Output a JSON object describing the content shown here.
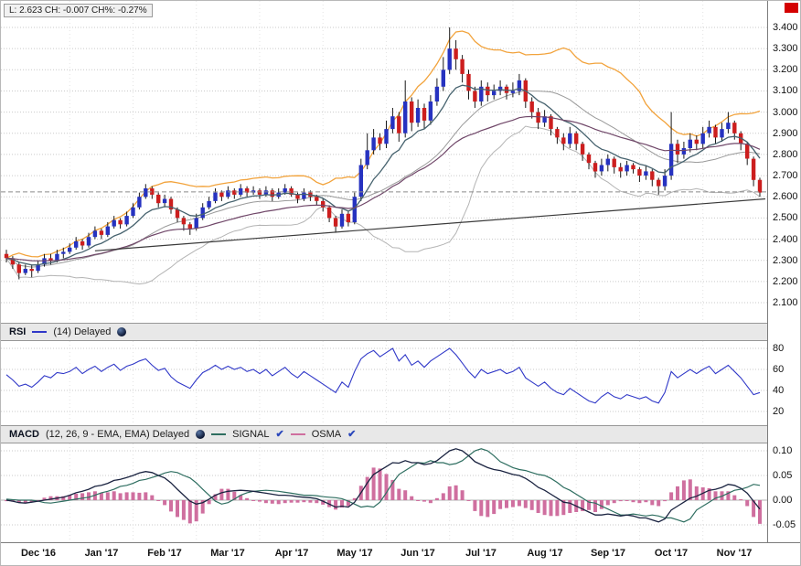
{
  "quote": {
    "label": "L: 2.623 CH: -0.007 CH%: -0.27%"
  },
  "corner_marker": {
    "color": "#d40000"
  },
  "icons": {
    "check": "✔",
    "delayed_globe": "globe-icon"
  },
  "axis": {
    "price_ticks": [
      "3.400",
      "3.300",
      "3.200",
      "3.100",
      "3.000",
      "2.900",
      "2.800",
      "2.700",
      "2.600",
      "2.500",
      "2.400",
      "2.300",
      "2.200",
      "2.100"
    ],
    "rsi_ticks": [
      "80",
      "60",
      "40",
      "20"
    ],
    "macd_ticks": [
      "0.10",
      "0.05",
      "0.00",
      "-0.05"
    ]
  },
  "rsi_panel": {
    "title": "RSI",
    "params": "(14) Delayed",
    "line_color": "#3038c8"
  },
  "macd_panel": {
    "title": "MACD",
    "params": "(12, 26, 9 - EMA, EMA) Delayed",
    "macd_color": "#1a2340",
    "legend": [
      {
        "label": "SIGNAL",
        "color": "#2e6e60"
      },
      {
        "label": "OSMA",
        "color": "#cf6f9f"
      }
    ]
  },
  "price_panel": {
    "current_price_line": 2.623,
    "trendline": {
      "from_index": 14,
      "from_price": 2.345,
      "to_price": 2.59
    },
    "colors": {
      "up": "#2632c0",
      "down": "#cc1e1e",
      "wick": "#1a1a1a",
      "bb_upper": "#f2a33c",
      "bb_mid": "#9a9a9a",
      "bb_lower": "#b4b4b4",
      "ema_fast": "#46626e",
      "ema_slow": "#6f4668",
      "trend": "#3a3a3a",
      "current": "#8a8a8a"
    }
  },
  "chart_data": {
    "type": "candlestick",
    "title": "Delayed price chart with RSI(14) and MACD(12,26,9) panels",
    "x_months": [
      "Dec '16",
      "Jan '17",
      "Feb '17",
      "Mar '17",
      "Apr '17",
      "May '17",
      "Jun '17",
      "Jul '17",
      "Aug '17",
      "Sep '17",
      "Oct '17",
      "Nov '17"
    ],
    "price_axis_range": [
      2.1,
      3.4
    ],
    "rsi_axis_range": [
      20,
      80
    ],
    "macd_axis_range": [
      -0.05,
      0.1
    ],
    "last_close": 2.623,
    "ohlc": [
      [
        2.33,
        2.35,
        2.29,
        2.31
      ],
      [
        2.31,
        2.32,
        2.26,
        2.28
      ],
      [
        2.28,
        2.29,
        2.21,
        2.24
      ],
      [
        2.24,
        2.28,
        2.23,
        2.26
      ],
      [
        2.26,
        2.28,
        2.22,
        2.25
      ],
      [
        2.25,
        2.3,
        2.24,
        2.28
      ],
      [
        2.28,
        2.33,
        2.27,
        2.31
      ],
      [
        2.31,
        2.33,
        2.28,
        2.3
      ],
      [
        2.3,
        2.35,
        2.29,
        2.33
      ],
      [
        2.33,
        2.36,
        2.31,
        2.34
      ],
      [
        2.34,
        2.38,
        2.33,
        2.36
      ],
      [
        2.36,
        2.41,
        2.35,
        2.39
      ],
      [
        2.39,
        2.4,
        2.35,
        2.37
      ],
      [
        2.37,
        2.43,
        2.36,
        2.41
      ],
      [
        2.41,
        2.46,
        2.4,
        2.44
      ],
      [
        2.44,
        2.45,
        2.4,
        2.42
      ],
      [
        2.42,
        2.48,
        2.41,
        2.46
      ],
      [
        2.46,
        2.51,
        2.45,
        2.49
      ],
      [
        2.49,
        2.5,
        2.45,
        2.47
      ],
      [
        2.47,
        2.53,
        2.46,
        2.51
      ],
      [
        2.51,
        2.57,
        2.5,
        2.55
      ],
      [
        2.55,
        2.62,
        2.54,
        2.6
      ],
      [
        2.6,
        2.66,
        2.59,
        2.64
      ],
      [
        2.64,
        2.65,
        2.59,
        2.61
      ],
      [
        2.61,
        2.62,
        2.55,
        2.57
      ],
      [
        2.57,
        2.61,
        2.55,
        2.59
      ],
      [
        2.59,
        2.6,
        2.52,
        2.54
      ],
      [
        2.54,
        2.55,
        2.48,
        2.5
      ],
      [
        2.5,
        2.51,
        2.44,
        2.47
      ],
      [
        2.47,
        2.48,
        2.42,
        2.45
      ],
      [
        2.45,
        2.52,
        2.44,
        2.5
      ],
      [
        2.5,
        2.57,
        2.49,
        2.55
      ],
      [
        2.55,
        2.6,
        2.54,
        2.58
      ],
      [
        2.58,
        2.64,
        2.57,
        2.62
      ],
      [
        2.62,
        2.63,
        2.58,
        2.6
      ],
      [
        2.6,
        2.65,
        2.59,
        2.63
      ],
      [
        2.63,
        2.64,
        2.59,
        2.61
      ],
      [
        2.61,
        2.66,
        2.6,
        2.64
      ],
      [
        2.64,
        2.65,
        2.6,
        2.62
      ],
      [
        2.62,
        2.65,
        2.61,
        2.63
      ],
      [
        2.63,
        2.64,
        2.59,
        2.61
      ],
      [
        2.61,
        2.65,
        2.6,
        2.63
      ],
      [
        2.63,
        2.64,
        2.58,
        2.6
      ],
      [
        2.6,
        2.64,
        2.59,
        2.62
      ],
      [
        2.62,
        2.66,
        2.61,
        2.64
      ],
      [
        2.64,
        2.65,
        2.6,
        2.61
      ],
      [
        2.61,
        2.62,
        2.57,
        2.59
      ],
      [
        2.59,
        2.64,
        2.58,
        2.62
      ],
      [
        2.62,
        2.63,
        2.58,
        2.6
      ],
      [
        2.6,
        2.61,
        2.56,
        2.58
      ],
      [
        2.58,
        2.59,
        2.53,
        2.55
      ],
      [
        2.55,
        2.56,
        2.48,
        2.5
      ],
      [
        2.5,
        2.51,
        2.43,
        2.46
      ],
      [
        2.46,
        2.54,
        2.45,
        2.52
      ],
      [
        2.52,
        2.53,
        2.46,
        2.48
      ],
      [
        2.48,
        2.62,
        2.47,
        2.6
      ],
      [
        2.6,
        2.78,
        2.58,
        2.75
      ],
      [
        2.75,
        2.9,
        2.73,
        2.82
      ],
      [
        2.82,
        2.92,
        2.8,
        2.88
      ],
      [
        2.88,
        2.9,
        2.82,
        2.85
      ],
      [
        2.85,
        2.96,
        2.83,
        2.92
      ],
      [
        2.92,
        3.02,
        2.9,
        2.98
      ],
      [
        2.98,
        3.0,
        2.86,
        2.9
      ],
      [
        2.9,
        3.15,
        2.88,
        3.05
      ],
      [
        3.05,
        3.07,
        2.91,
        2.95
      ],
      [
        2.95,
        3.06,
        2.93,
        3.02
      ],
      [
        3.02,
        3.04,
        2.92,
        2.96
      ],
      [
        2.96,
        3.08,
        2.94,
        3.05
      ],
      [
        3.05,
        3.16,
        3.03,
        3.12
      ],
      [
        3.12,
        3.26,
        3.1,
        3.2
      ],
      [
        3.2,
        3.4,
        3.18,
        3.3
      ],
      [
        3.3,
        3.34,
        3.2,
        3.25
      ],
      [
        3.25,
        3.27,
        3.14,
        3.18
      ],
      [
        3.18,
        3.2,
        3.06,
        3.1
      ],
      [
        3.1,
        3.12,
        3.02,
        3.05
      ],
      [
        3.05,
        3.15,
        3.03,
        3.12
      ],
      [
        3.12,
        3.14,
        3.05,
        3.08
      ],
      [
        3.08,
        3.13,
        3.06,
        3.1
      ],
      [
        3.1,
        3.15,
        3.08,
        3.12
      ],
      [
        3.12,
        3.13,
        3.06,
        3.09
      ],
      [
        3.09,
        3.14,
        3.07,
        3.1
      ],
      [
        3.1,
        3.18,
        3.08,
        3.15
      ],
      [
        3.15,
        3.16,
        3.02,
        3.05
      ],
      [
        3.05,
        3.07,
        2.97,
        3.0
      ],
      [
        3.0,
        3.02,
        2.92,
        2.95
      ],
      [
        2.95,
        3.01,
        2.93,
        2.98
      ],
      [
        2.98,
        2.99,
        2.89,
        2.92
      ],
      [
        2.92,
        2.93,
        2.85,
        2.88
      ],
      [
        2.88,
        2.9,
        2.82,
        2.85
      ],
      [
        2.85,
        2.93,
        2.83,
        2.9
      ],
      [
        2.9,
        2.91,
        2.82,
        2.85
      ],
      [
        2.85,
        2.86,
        2.77,
        2.8
      ],
      [
        2.8,
        2.81,
        2.73,
        2.76
      ],
      [
        2.76,
        2.77,
        2.69,
        2.72
      ],
      [
        2.72,
        2.78,
        2.7,
        2.75
      ],
      [
        2.75,
        2.8,
        2.72,
        2.78
      ],
      [
        2.78,
        2.79,
        2.71,
        2.74
      ],
      [
        2.74,
        2.76,
        2.69,
        2.72
      ],
      [
        2.72,
        2.77,
        2.7,
        2.75
      ],
      [
        2.75,
        2.76,
        2.71,
        2.73
      ],
      [
        2.73,
        2.74,
        2.67,
        2.7
      ],
      [
        2.7,
        2.75,
        2.68,
        2.72
      ],
      [
        2.72,
        2.73,
        2.65,
        2.68
      ],
      [
        2.68,
        2.69,
        2.61,
        2.65
      ],
      [
        2.65,
        2.73,
        2.63,
        2.7
      ],
      [
        2.7,
        3.0,
        2.68,
        2.85
      ],
      [
        2.85,
        2.87,
        2.76,
        2.8
      ],
      [
        2.8,
        2.86,
        2.78,
        2.83
      ],
      [
        2.83,
        2.9,
        2.81,
        2.87
      ],
      [
        2.87,
        2.89,
        2.82,
        2.85
      ],
      [
        2.85,
        2.93,
        2.83,
        2.9
      ],
      [
        2.9,
        2.96,
        2.88,
        2.93
      ],
      [
        2.93,
        2.94,
        2.85,
        2.88
      ],
      [
        2.88,
        2.95,
        2.86,
        2.92
      ],
      [
        2.92,
        3.0,
        2.9,
        2.95
      ],
      [
        2.95,
        2.96,
        2.87,
        2.9
      ],
      [
        2.9,
        2.91,
        2.82,
        2.85
      ],
      [
        2.85,
        2.86,
        2.75,
        2.78
      ],
      [
        2.78,
        2.79,
        2.65,
        2.68
      ],
      [
        2.68,
        2.69,
        2.6,
        2.62
      ]
    ],
    "indicators": {
      "rsi14": [
        55,
        50,
        44,
        46,
        43,
        48,
        54,
        52,
        57,
        56,
        58,
        62,
        56,
        60,
        63,
        58,
        62,
        65,
        59,
        63,
        65,
        68,
        70,
        64,
        59,
        61,
        53,
        48,
        45,
        42,
        50,
        57,
        60,
        64,
        60,
        63,
        60,
        62,
        58,
        60,
        56,
        60,
        54,
        58,
        62,
        56,
        52,
        58,
        54,
        50,
        46,
        42,
        38,
        48,
        43,
        58,
        70,
        75,
        78,
        72,
        76,
        80,
        68,
        74,
        64,
        68,
        62,
        68,
        72,
        76,
        80,
        74,
        66,
        58,
        52,
        60,
        56,
        58,
        60,
        56,
        58,
        62,
        52,
        48,
        44,
        48,
        42,
        38,
        36,
        42,
        38,
        34,
        30,
        28,
        34,
        38,
        34,
        32,
        36,
        34,
        32,
        34,
        30,
        28,
        38,
        58,
        52,
        56,
        60,
        56,
        60,
        63,
        56,
        60,
        64,
        58,
        52,
        44,
        36,
        38
      ],
      "macd": [
        0.0,
        -0.002,
        -0.005,
        -0.006,
        -0.004,
        -0.002,
        0.0,
        0.002,
        0.004,
        0.006,
        0.01,
        0.015,
        0.018,
        0.022,
        0.028,
        0.03,
        0.034,
        0.04,
        0.042,
        0.046,
        0.05,
        0.055,
        0.058,
        0.056,
        0.05,
        0.045,
        0.035,
        0.022,
        0.01,
        -0.002,
        -0.008,
        -0.005,
        0.002,
        0.01,
        0.015,
        0.018,
        0.019,
        0.02,
        0.019,
        0.018,
        0.016,
        0.014,
        0.012,
        0.01,
        0.01,
        0.009,
        0.007,
        0.006,
        0.005,
        0.003,
        -0.002,
        -0.008,
        -0.014,
        -0.012,
        -0.014,
        -0.004,
        0.015,
        0.035,
        0.052,
        0.06,
        0.068,
        0.076,
        0.075,
        0.08,
        0.076,
        0.076,
        0.072,
        0.074,
        0.08,
        0.09,
        0.1,
        0.104,
        0.1,
        0.09,
        0.078,
        0.072,
        0.066,
        0.062,
        0.06,
        0.056,
        0.052,
        0.05,
        0.044,
        0.036,
        0.026,
        0.02,
        0.012,
        0.004,
        -0.004,
        -0.006,
        -0.012,
        -0.018,
        -0.024,
        -0.03,
        -0.03,
        -0.028,
        -0.03,
        -0.032,
        -0.03,
        -0.032,
        -0.036,
        -0.036,
        -0.04,
        -0.044,
        -0.038,
        -0.02,
        -0.012,
        -0.004,
        0.004,
        0.008,
        0.014,
        0.02,
        0.022,
        0.026,
        0.032,
        0.03,
        0.024,
        0.014,
        -0.002,
        -0.018
      ],
      "macd_signal": [
        0.002,
        0.001,
        0.0,
        0.0,
        0.0,
        -0.002,
        -0.005,
        -0.006,
        -0.004,
        -0.002,
        0.0,
        0.002,
        0.004,
        0.006,
        0.01,
        0.015,
        0.018,
        0.022,
        0.028,
        0.03,
        0.034,
        0.04,
        0.042,
        0.046,
        0.05,
        0.055,
        0.058,
        0.056,
        0.05,
        0.045,
        0.035,
        0.022,
        0.01,
        -0.002,
        -0.008,
        -0.005,
        0.002,
        0.01,
        0.015,
        0.018,
        0.019,
        0.02,
        0.019,
        0.018,
        0.016,
        0.014,
        0.012,
        0.01,
        0.01,
        0.009,
        0.007,
        0.006,
        0.005,
        0.003,
        -0.002,
        -0.008,
        -0.014,
        -0.012,
        -0.014,
        -0.004,
        0.015,
        0.035,
        0.052,
        0.06,
        0.068,
        0.076,
        0.075,
        0.08,
        0.076,
        0.076,
        0.072,
        0.074,
        0.08,
        0.09,
        0.1,
        0.104,
        0.1,
        0.09,
        0.078,
        0.072,
        0.066,
        0.062,
        0.06,
        0.056,
        0.052,
        0.05,
        0.044,
        0.036,
        0.026,
        0.02,
        0.012,
        0.004,
        -0.004,
        -0.006,
        -0.012,
        -0.018,
        -0.024,
        -0.03,
        -0.03,
        -0.028,
        -0.03,
        -0.032,
        -0.03,
        -0.032,
        -0.036,
        -0.036,
        -0.04,
        -0.044,
        -0.038,
        -0.02,
        -0.012,
        -0.004,
        0.004,
        0.008,
        0.014,
        0.02,
        0.022,
        0.026,
        0.032,
        0.03
      ]
    }
  }
}
